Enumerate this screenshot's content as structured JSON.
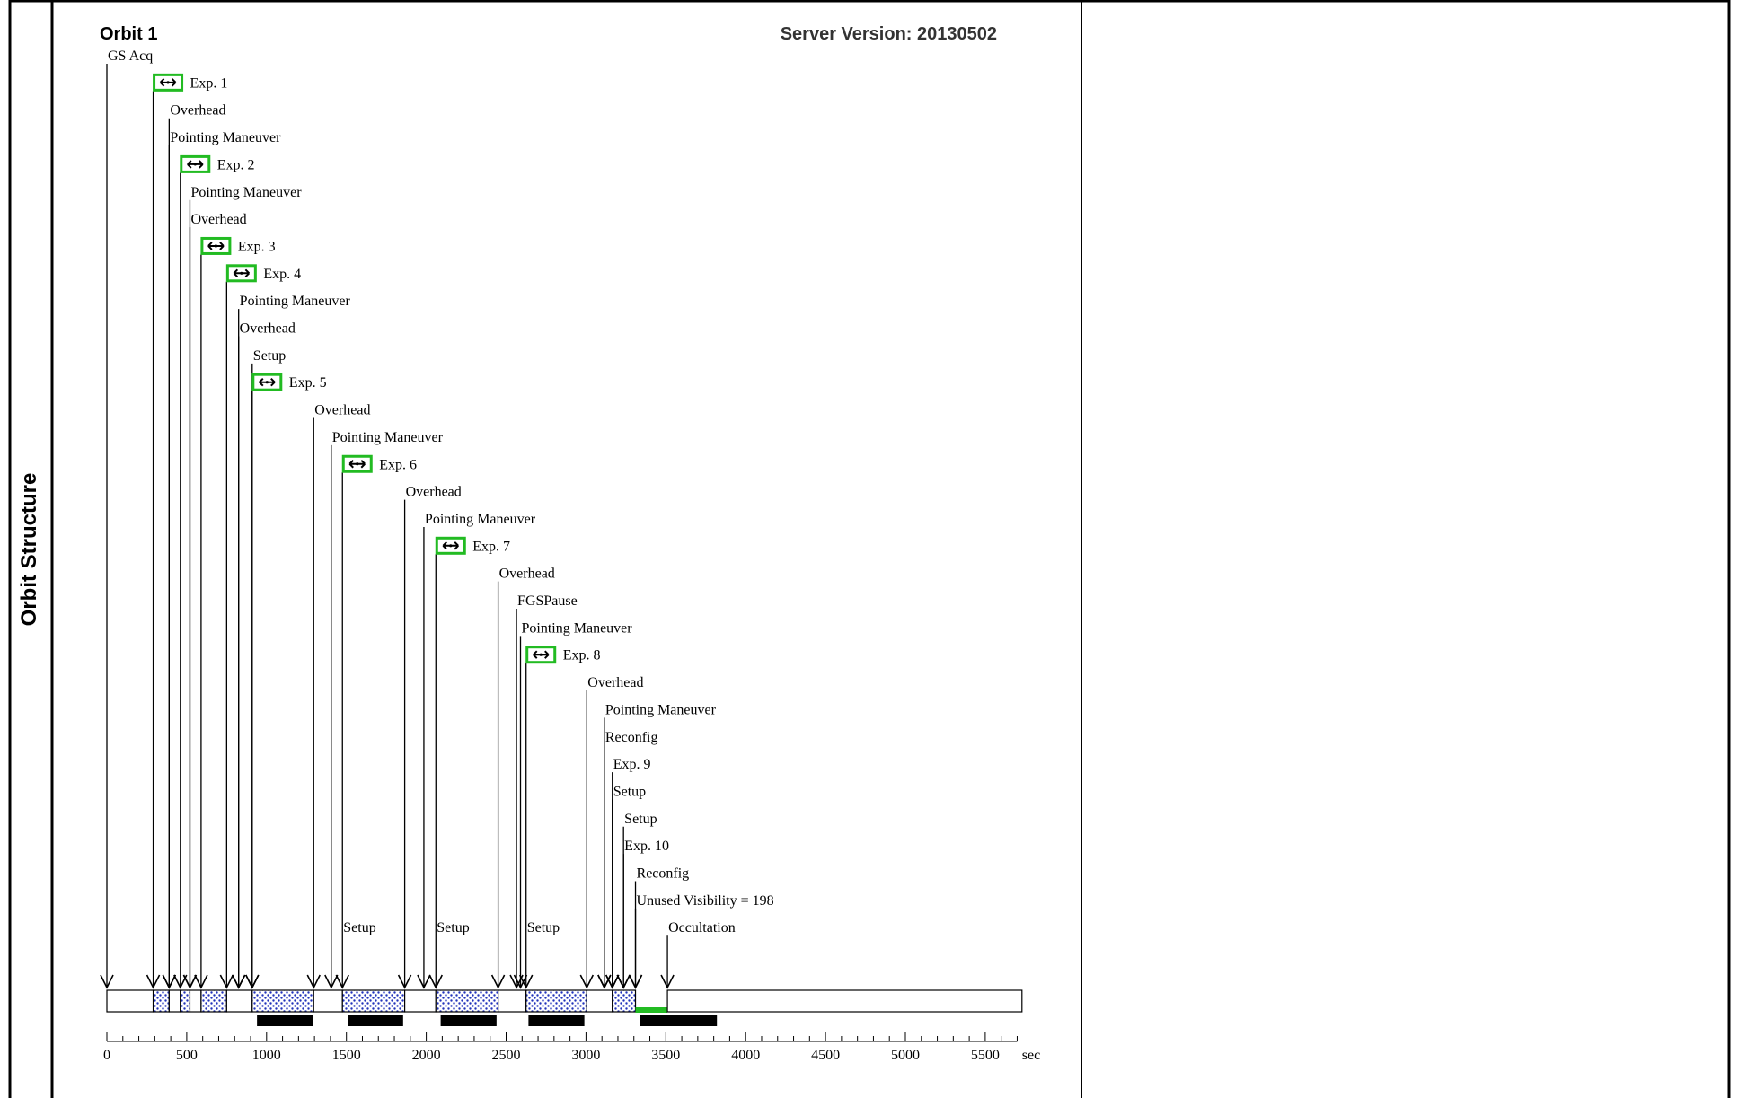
{
  "side_label": "Orbit Structure",
  "header": {
    "orbit_title": "Orbit 1",
    "server_version": "Server Version: 20130502"
  },
  "chart_data": {
    "type": "timeline",
    "xlabel": "sec",
    "xlim": [
      0,
      5700
    ],
    "x_ticks": [
      0,
      500,
      1000,
      1500,
      2000,
      2500,
      3000,
      3500,
      4000,
      4500,
      5000,
      5500
    ],
    "events": [
      {
        "label": "GS Acq",
        "t": 0,
        "expand_icon": false
      },
      {
        "label": "Exp. 1",
        "t": 290,
        "expand_icon": true
      },
      {
        "label": "Overhead",
        "t": 390,
        "expand_icon": false
      },
      {
        "label": "Pointing Maneuver",
        "t": 390,
        "expand_icon": false
      },
      {
        "label": "Exp. 2",
        "t": 460,
        "expand_icon": true
      },
      {
        "label": "Pointing Maneuver",
        "t": 520,
        "expand_icon": false
      },
      {
        "label": "Overhead",
        "t": 520,
        "expand_icon": false
      },
      {
        "label": "Exp. 3",
        "t": 590,
        "expand_icon": true
      },
      {
        "label": "Exp. 4",
        "t": 750,
        "expand_icon": true
      },
      {
        "label": "Pointing Maneuver",
        "t": 825,
        "expand_icon": false
      },
      {
        "label": "Overhead",
        "t": 825,
        "expand_icon": false
      },
      {
        "label": "Setup",
        "t": 910,
        "expand_icon": false
      },
      {
        "label": "Exp. 5",
        "t": 910,
        "expand_icon": true
      },
      {
        "label": "Overhead",
        "t": 1295,
        "expand_icon": false
      },
      {
        "label": "Pointing Maneuver",
        "t": 1405,
        "expand_icon": false
      },
      {
        "label": "Exp. 6",
        "t": 1475,
        "expand_icon": true
      },
      {
        "label": "Overhead",
        "t": 1865,
        "expand_icon": false
      },
      {
        "label": "Pointing Maneuver",
        "t": 1985,
        "expand_icon": false
      },
      {
        "label": "Exp. 7",
        "t": 2060,
        "expand_icon": true
      },
      {
        "label": "Overhead",
        "t": 2450,
        "expand_icon": false
      },
      {
        "label": "FGSPause",
        "t": 2565,
        "expand_icon": false
      },
      {
        "label": "Pointing Maneuver",
        "t": 2590,
        "expand_icon": false
      },
      {
        "label": "Exp. 8",
        "t": 2625,
        "expand_icon": true
      },
      {
        "label": "Overhead",
        "t": 3005,
        "expand_icon": false
      },
      {
        "label": "Pointing Maneuver",
        "t": 3115,
        "expand_icon": false
      },
      {
        "label": "Reconfig",
        "t": 3115,
        "expand_icon": false
      },
      {
        "label": "Exp. 9",
        "t": 3165,
        "expand_icon": false
      },
      {
        "label": "Setup",
        "t": 3165,
        "expand_icon": false
      },
      {
        "label": "Setup",
        "t": 3235,
        "expand_icon": false
      },
      {
        "label": "Exp. 10",
        "t": 3235,
        "expand_icon": false
      },
      {
        "label": "Reconfig",
        "t": 3310,
        "expand_icon": false
      },
      {
        "label": "Unused Visibility = 198",
        "t": 3310,
        "expand_icon": false
      }
    ],
    "bottom_events": [
      {
        "label": "Setup",
        "t": 1475
      },
      {
        "label": "Setup",
        "t": 2060
      },
      {
        "label": "Setup",
        "t": 2625
      },
      {
        "label": "Occultation",
        "t": 3510
      }
    ],
    "timeline_segments": [
      {
        "kind": "open",
        "start": 0,
        "end": 290
      },
      {
        "kind": "dotted",
        "start": 290,
        "end": 390
      },
      {
        "kind": "open",
        "start": 390,
        "end": 460
      },
      {
        "kind": "dotted",
        "start": 460,
        "end": 520
      },
      {
        "kind": "open",
        "start": 520,
        "end": 590
      },
      {
        "kind": "dotted",
        "start": 590,
        "end": 750
      },
      {
        "kind": "open",
        "start": 750,
        "end": 910
      },
      {
        "kind": "dotted",
        "start": 910,
        "end": 1295
      },
      {
        "kind": "open",
        "start": 1295,
        "end": 1475
      },
      {
        "kind": "dotted",
        "start": 1475,
        "end": 1865
      },
      {
        "kind": "open",
        "start": 1865,
        "end": 2060
      },
      {
        "kind": "dotted",
        "start": 2060,
        "end": 2450
      },
      {
        "kind": "open",
        "start": 2450,
        "end": 2625
      },
      {
        "kind": "dotted",
        "start": 2625,
        "end": 3005
      },
      {
        "kind": "open",
        "start": 3005,
        "end": 3165
      },
      {
        "kind": "dotted",
        "start": 3165,
        "end": 3310
      },
      {
        "kind": "unused",
        "start": 3310,
        "end": 3510
      },
      {
        "kind": "open",
        "start": 3510,
        "end": 5730
      }
    ],
    "black_bars": [
      {
        "start": 940,
        "end": 1290
      },
      {
        "start": 1510,
        "end": 1855
      },
      {
        "start": 2090,
        "end": 2440
      },
      {
        "start": 2640,
        "end": 2990
      },
      {
        "start": 3340,
        "end": 3820
      }
    ],
    "colors": {
      "expand_icon": "#22bb22",
      "unused_bar": "#22bb22",
      "dotted_fill": "#2233bb",
      "black_bar": "#000000",
      "line": "#000000"
    }
  }
}
